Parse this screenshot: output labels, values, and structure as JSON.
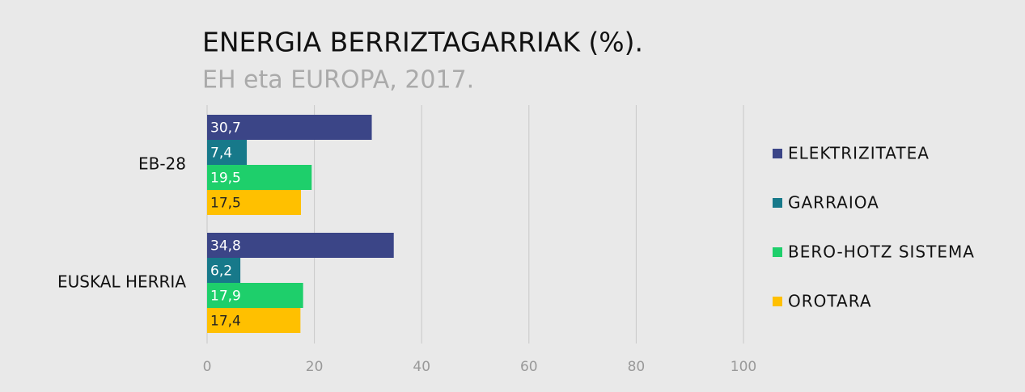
{
  "chart_data": {
    "type": "hbar",
    "title": "ENERGIA BERRIZTAGARRIAK (%).",
    "subtitle": "EH eta EUROPA, 2017.",
    "categories": [
      "EB-28",
      "EUSKAL HERRIA"
    ],
    "series": [
      {
        "name": "ELEKTRIZITATEA",
        "color": "#3b4587",
        "values": [
          30.7,
          34.8
        ],
        "value_labels": [
          "30,7",
          "34,8"
        ]
      },
      {
        "name": "GARRAIOA",
        "color": "#17798a",
        "values": [
          7.4,
          6.2
        ],
        "value_labels": [
          "7,4",
          "6,2"
        ]
      },
      {
        "name": "BERO-HOTZ SISTEMA",
        "color": "#1ecf6b",
        "values": [
          19.5,
          17.9
        ],
        "value_labels": [
          "19,5",
          "17,9"
        ]
      },
      {
        "name": "OROTARA",
        "color": "#ffc000",
        "values": [
          17.5,
          17.4
        ],
        "value_labels": [
          "17,5",
          "17,4"
        ]
      }
    ],
    "xlim": [
      0,
      100
    ],
    "xticks": [
      0,
      20,
      40,
      60,
      80,
      100
    ],
    "grid": true
  }
}
